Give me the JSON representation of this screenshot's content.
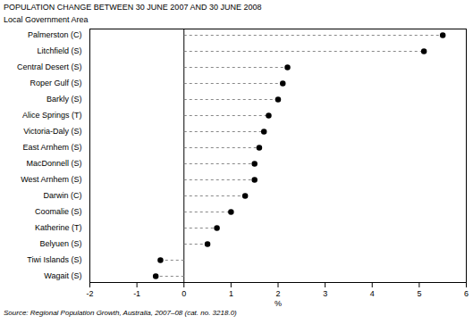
{
  "chart_data": {
    "type": "dot",
    "orientation": "horizontal",
    "title": "POPULATION CHANGE BETWEEN 30 JUNE 2007 AND 30 JUNE 2008",
    "ylabel": "Local Government Area",
    "xlabel": "%",
    "caption": "Source: Regional Population Growth, Australia, 2007–08 (cat. no. 3218.0)",
    "categories": [
      "Palmerston (C)",
      "Litchfield (S)",
      "Central Desert (S)",
      "Roper Gulf (S)",
      "Barkly (S)",
      "Alice Springs (T)",
      "Victoria-Daly (S)",
      "East Arnhem (S)",
      "MacDonnell (S)",
      "West Arnhem (S)",
      "Darwin (C)",
      "Coomalie (S)",
      "Katherine (T)",
      "Belyuen (S)",
      "Tiwi Islands (S)",
      "Wagait (S)"
    ],
    "values": [
      5.5,
      5.1,
      2.2,
      2.1,
      2.0,
      1.8,
      1.7,
      1.6,
      1.5,
      1.5,
      1.3,
      1.0,
      0.7,
      0.5,
      -0.5,
      -0.6
    ],
    "color": "#000000",
    "marker": "circle",
    "line_style": "dashed",
    "xlim": [
      -2,
      6
    ],
    "xticks": [
      -2,
      -1,
      0,
      1,
      2,
      3,
      4,
      5,
      6
    ]
  }
}
